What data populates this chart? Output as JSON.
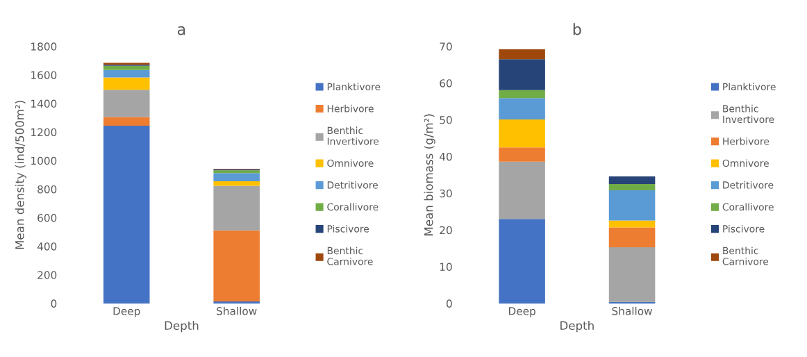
{
  "chart_data": [
    {
      "type": "bar",
      "title": "a",
      "xlabel": "Depth",
      "ylabel": "Mean density (ind/500m²)",
      "categories": [
        "Deep",
        "Shallow"
      ],
      "stacked": true,
      "legend": "right",
      "grid": false,
      "ylim": [
        0,
        1800
      ],
      "yticks": [
        0,
        200,
        400,
        600,
        800,
        1000,
        1200,
        1400,
        1600,
        1800
      ],
      "series": [
        {
          "name": "Planktivore",
          "color": "#4472c4",
          "values": [
            1245,
            14
          ]
        },
        {
          "name": "Herbivore",
          "color": "#ed7d31",
          "values": [
            60,
            498
          ]
        },
        {
          "name": "Benthic Invertivore",
          "color": "#a5a5a5",
          "values": [
            191,
            312
          ]
        },
        {
          "name": "Omnivore",
          "color": "#ffc000",
          "values": [
            87,
            31
          ]
        },
        {
          "name": "Detritivore",
          "color": "#5b9bd5",
          "values": [
            52,
            58
          ]
        },
        {
          "name": "Corallivore",
          "color": "#70ad47",
          "values": [
            29,
            19
          ]
        },
        {
          "name": "Piscivore",
          "color": "#264478",
          "values": [
            8,
            6
          ]
        },
        {
          "name": "Benthic Carnivore",
          "color": "#9e480e",
          "values": [
            13,
            4
          ]
        }
      ]
    },
    {
      "type": "bar",
      "title": "b",
      "xlabel": "Depth",
      "ylabel": "Mean biomass (g/m²)",
      "categories": [
        "Deep",
        "Shallow"
      ],
      "stacked": true,
      "legend": "right",
      "grid": false,
      "ylim": [
        0,
        70
      ],
      "yticks": [
        0,
        10,
        20,
        30,
        40,
        50,
        60,
        70
      ],
      "series": [
        {
          "name": "Planktivore",
          "color": "#4472c4",
          "values": [
            23.0,
            0.4
          ]
        },
        {
          "name": "Benthic Invertivore",
          "color": "#a5a5a5",
          "values": [
            15.6,
            14.9
          ]
        },
        {
          "name": "Herbivore",
          "color": "#ed7d31",
          "values": [
            3.9,
            5.4
          ]
        },
        {
          "name": "Omnivore",
          "color": "#ffc000",
          "values": [
            7.6,
            1.9
          ]
        },
        {
          "name": "Detritivore",
          "color": "#5b9bd5",
          "values": [
            5.8,
            8.2
          ]
        },
        {
          "name": "Corallivore",
          "color": "#70ad47",
          "values": [
            2.2,
            1.7
          ]
        },
        {
          "name": "Piscivore",
          "color": "#264478",
          "values": [
            8.4,
            2.1
          ]
        },
        {
          "name": "Benthic Carnivore",
          "color": "#9e480e",
          "values": [
            2.7,
            0
          ]
        }
      ]
    }
  ]
}
